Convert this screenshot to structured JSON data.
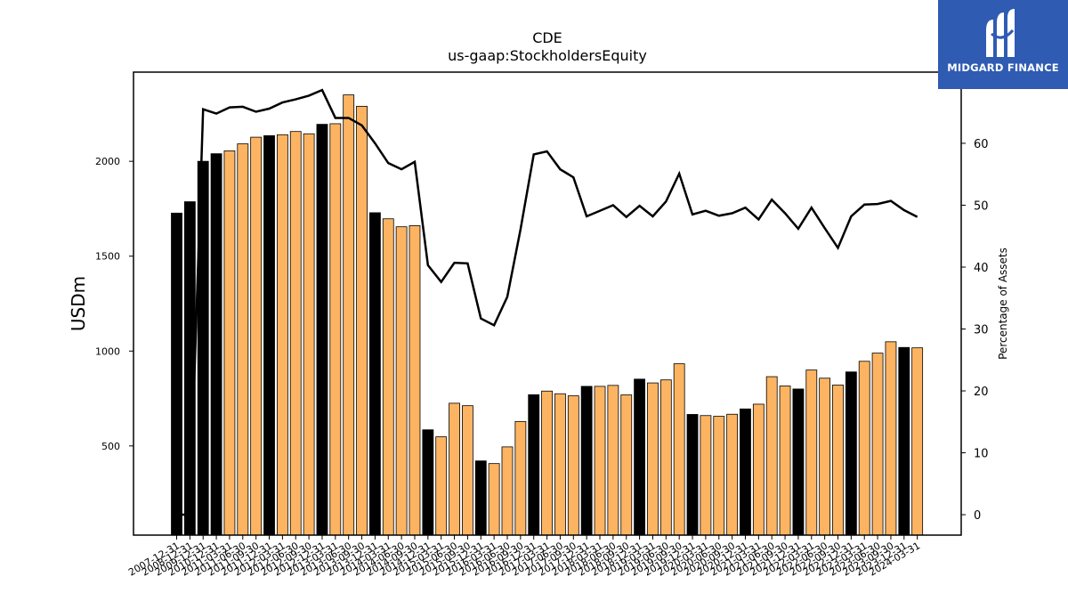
{
  "chart_data": {
    "type": "bar",
    "title": "CDE",
    "subtitle": "us-gaap:StockholdersEquity",
    "ylabel": "USDm",
    "y2label": "Percentage of Assets",
    "ylim": [
      30,
      2470
    ],
    "y2lim": [
      -3.3,
      71.5
    ],
    "yticks": [
      500,
      1000,
      1500,
      2000
    ],
    "y2ticks": [
      0,
      10,
      20,
      30,
      40,
      50,
      60
    ],
    "categories": [
      "2007-12-31",
      "2008-12-31",
      "2009-12-31",
      "2010-12-31",
      "2011-03-31",
      "2011-06-30",
      "2011-09-30",
      "2011-12-31",
      "2012-03-31",
      "2012-06-30",
      "2012-09-30",
      "2012-12-31",
      "2013-03-31",
      "2013-06-30",
      "2013-09-30",
      "2013-12-31",
      "2014-03-31",
      "2014-06-30",
      "2014-09-30",
      "2014-12-31",
      "2015-03-31",
      "2015-06-30",
      "2015-09-30",
      "2015-12-31",
      "2016-03-31",
      "2016-06-30",
      "2016-09-30",
      "2016-12-31",
      "2017-03-31",
      "2017-06-30",
      "2017-09-30",
      "2017-12-31",
      "2018-03-31",
      "2018-06-30",
      "2018-09-30",
      "2018-12-31",
      "2019-03-31",
      "2019-06-30",
      "2019-09-30",
      "2019-12-31",
      "2020-03-31",
      "2020-06-30",
      "2020-09-30",
      "2020-12-31",
      "2021-03-31",
      "2021-06-30",
      "2021-09-30",
      "2021-12-31",
      "2022-03-31",
      "2022-06-30",
      "2022-09-30",
      "2022-12-31",
      "2023-03-31",
      "2023-06-30",
      "2023-09-30",
      "2023-12-31",
      "2024-03-31"
    ],
    "series": [
      {
        "kind": "bar",
        "values": [
          1727,
          1787,
          2000,
          2040,
          2055,
          2092,
          2127,
          2135,
          2140,
          2157,
          2145,
          2195,
          2198,
          2350,
          2290,
          1729,
          1697,
          1655,
          1661,
          585,
          548,
          725,
          712,
          421,
          407,
          495,
          629,
          770,
          789,
          775,
          764,
          814,
          814,
          819,
          769,
          852,
          832,
          848,
          933,
          666,
          660,
          656,
          667,
          695,
          720,
          865,
          816,
          800,
          900,
          857,
          821,
          890,
          946,
          989,
          1049,
          1019,
          1017
        ],
        "annual_marked": [
          true,
          true,
          true,
          true,
          false,
          false,
          false,
          true,
          false,
          false,
          false,
          true,
          false,
          false,
          false,
          true,
          false,
          false,
          false,
          true,
          false,
          false,
          false,
          true,
          false,
          false,
          false,
          true,
          false,
          false,
          false,
          true,
          false,
          false,
          false,
          true,
          false,
          false,
          false,
          true,
          false,
          false,
          false,
          true,
          false,
          false,
          false,
          true,
          false,
          false,
          false,
          true,
          false,
          false,
          false,
          true,
          false
        ]
      },
      {
        "kind": "line",
        "axis": "right",
        "values": [
          0,
          0,
          65.5,
          64.8,
          65.8,
          65.9,
          65.1,
          65.6,
          66.6,
          67.1,
          67.7,
          68.6,
          64.1,
          64.1,
          62.9,
          60,
          56.8,
          55.8,
          57,
          40.3,
          37.6,
          40.7,
          40.6,
          31.7,
          30.6,
          35.2,
          46.1,
          58.2,
          58.7,
          55.8,
          54.5,
          48.2,
          49.1,
          50,
          48.1,
          49.9,
          48.2,
          50.6,
          55.1,
          48.5,
          49.1,
          48.3,
          48.7,
          49.6,
          47.7,
          50.9,
          48.7,
          46.2,
          49.6,
          46.3,
          43.1,
          48.2,
          50.1,
          50.2,
          50.7,
          49.2,
          48.1
        ]
      }
    ],
    "colors": {
      "annual_bar": "#000000",
      "quarter_bar": "#fdb462",
      "line": "#000000"
    }
  },
  "logo": {
    "name": "MIDGARD FINANCE"
  }
}
